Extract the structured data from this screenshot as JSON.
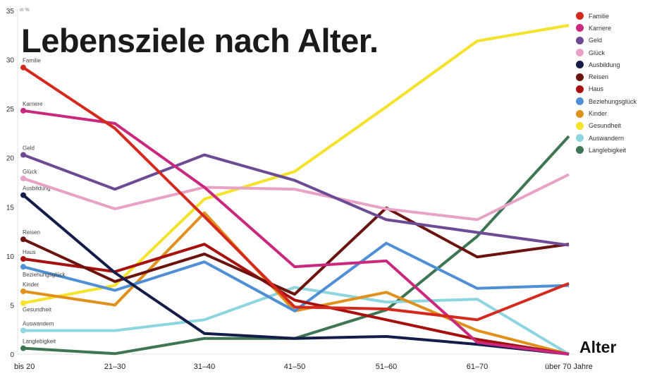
{
  "chart_data": {
    "type": "line",
    "title": "Lebensziele nach Alter.",
    "unit_label": "in %",
    "xlabel": "Alter",
    "ylabel": "",
    "categories": [
      "bis 20",
      "21–30",
      "31–40",
      "41–50",
      "51–60",
      "61–70",
      "über 70 Jahre"
    ],
    "ylim": [
      0,
      35
    ],
    "yticks": [
      0,
      5,
      10,
      15,
      20,
      25,
      30,
      35
    ],
    "grid": false,
    "legend": "right",
    "series": [
      {
        "name": "Familie",
        "color": "#d42a1e",
        "values": [
          29.2,
          23.0,
          14.0,
          4.8,
          4.6,
          3.5,
          7.2
        ]
      },
      {
        "name": "Karriere",
        "color": "#c9287d",
        "values": [
          24.8,
          23.5,
          17.0,
          8.9,
          9.5,
          1.2,
          0
        ]
      },
      {
        "name": "Geld",
        "color": "#6d4b94",
        "values": [
          20.3,
          16.8,
          20.3,
          17.7,
          13.7,
          12.4,
          11.1
        ]
      },
      {
        "name": "Glück",
        "color": "#e8a2c6",
        "values": [
          17.9,
          14.8,
          17.0,
          16.8,
          14.8,
          13.7,
          18.3
        ]
      },
      {
        "name": "Ausbildung",
        "color": "#141c4a",
        "values": [
          16.2,
          8.3,
          2.1,
          1.6,
          1.8,
          1.0,
          0
        ]
      },
      {
        "name": "Reisen",
        "color": "#6b130f",
        "values": [
          11.7,
          7.4,
          10.2,
          6.1,
          14.9,
          9.9,
          11.2
        ]
      },
      {
        "name": "Haus",
        "color": "#a6100f",
        "values": [
          9.7,
          8.4,
          11.2,
          5.5,
          3.5,
          1.5,
          0
        ]
      },
      {
        "name": "Beziehungsglück",
        "color": "#4f8fd6",
        "values": [
          8.9,
          6.5,
          9.4,
          4.4,
          11.3,
          6.7,
          7.0
        ]
      },
      {
        "name": "Kinder",
        "color": "#e0901c",
        "values": [
          6.4,
          5.0,
          14.4,
          4.4,
          6.3,
          2.4,
          0
        ]
      },
      {
        "name": "Gesundheit",
        "color": "#f5e22a",
        "values": [
          5.2,
          7.0,
          15.8,
          18.6,
          25.2,
          31.9,
          33.5
        ]
      },
      {
        "name": "Auswandern",
        "color": "#8dd6df",
        "values": [
          2.4,
          2.4,
          3.5,
          6.8,
          5.3,
          5.6,
          0
        ]
      },
      {
        "name": "Langlebigkeit",
        "color": "#3e7552",
        "values": [
          0.6,
          0.05,
          1.6,
          1.6,
          4.5,
          12.0,
          22.2
        ]
      }
    ]
  }
}
